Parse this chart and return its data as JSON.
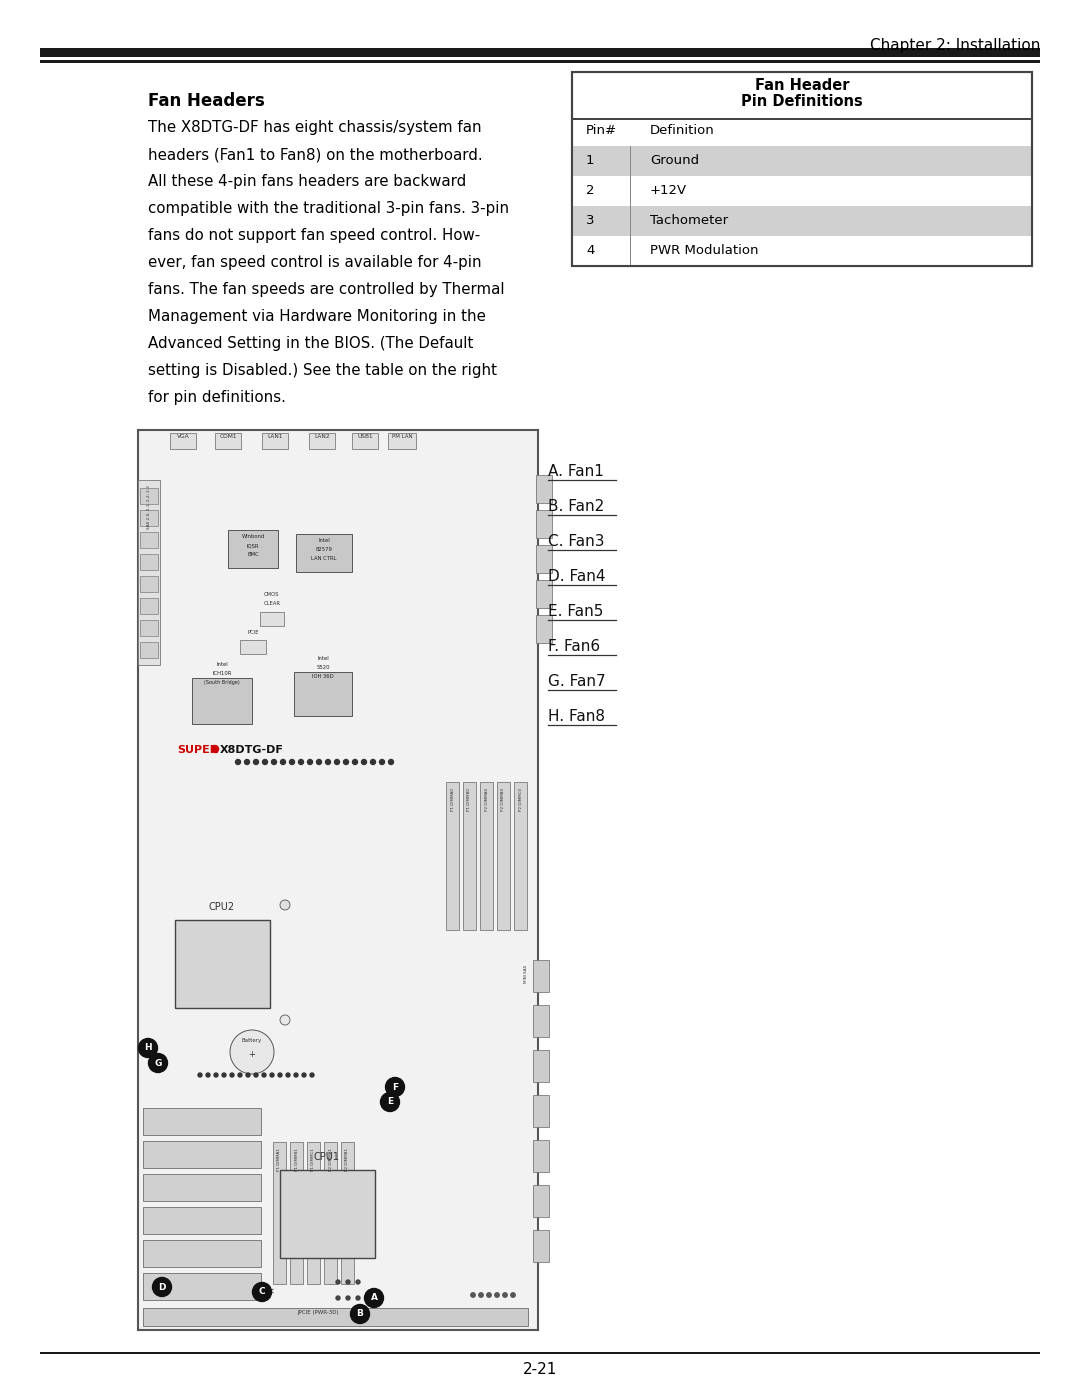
{
  "page_title": "Chapter 2: Installation",
  "page_number": "2-21",
  "section_title": "Fan Headers",
  "body_lines": [
    "The X8DTG-DF has eight chassis/system fan",
    "headers (Fan1 to Fan8) on the motherboard.",
    "All these 4-pin fans headers are backward",
    "compatible with the traditional 3-pin fans. 3-pin",
    "fans do not support fan speed control. How-",
    "ever, fan speed control is available for 4-pin",
    "fans. The fan speeds are controlled by Thermal",
    "Management via Hardware Monitoring in the",
    "Advanced Setting in the BIOS. (The Default",
    "setting is Disabled.) See the table on the right",
    "for pin definitions."
  ],
  "table_title_line1": "Fan Header",
  "table_title_line2": "Pin Definitions",
  "table_col1_header": "Pin#",
  "table_col2_header": "Definition",
  "table_rows": [
    {
      "pin": "1",
      "def": "Ground",
      "shaded": true
    },
    {
      "pin": "2",
      "def": "+12V",
      "shaded": false
    },
    {
      "pin": "3",
      "def": "Tachometer",
      "shaded": true
    },
    {
      "pin": "4",
      "def": "PWR Modulation",
      "shaded": false
    }
  ],
  "fan_labels": [
    "A. Fan1",
    "B. Fan2",
    "C. Fan3",
    "D. Fan4",
    "E. Fan5",
    "F. Fan6",
    "G. Fan7",
    "H. Fan8"
  ],
  "bg_color": "#ffffff",
  "text_color": "#000000",
  "table_shade_color": "#d0d0d0",
  "super_red": "#cc0000",
  "header_rule_color": "#1a1a1a",
  "board_fill": "#f2f2f2",
  "board_border": "#555555",
  "chip_fill": "#c8c8c8"
}
